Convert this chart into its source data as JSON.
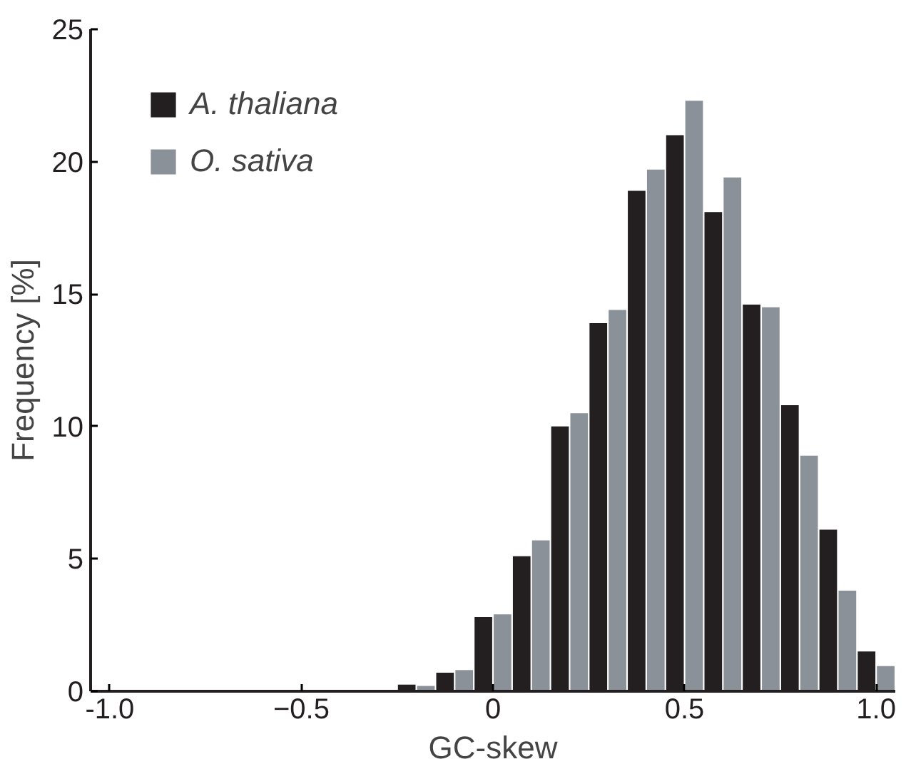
{
  "chart_data": {
    "type": "bar",
    "xlabel": "GC-skew",
    "ylabel": "Frequency [%]",
    "x": [
      -0.2,
      -0.1,
      0.0,
      0.1,
      0.2,
      0.3,
      0.4,
      0.5,
      0.6,
      0.7,
      0.8,
      0.9,
      1.0
    ],
    "series": [
      {
        "name": "A. thaliana",
        "color": "#231f20",
        "values": [
          0.25,
          0.7,
          2.8,
          5.1,
          10.0,
          13.9,
          18.9,
          21.0,
          18.1,
          14.6,
          10.8,
          6.1,
          1.5
        ]
      },
      {
        "name": "O. sativa",
        "color": "#8a9199",
        "values": [
          0.2,
          0.8,
          2.9,
          5.7,
          10.5,
          14.4,
          19.7,
          22.3,
          19.4,
          14.5,
          8.9,
          3.8,
          0.95
        ]
      }
    ],
    "xlim": [
      -1.05,
      1.05
    ],
    "xticks": [
      {
        "value": -1,
        "label": "-1.0"
      },
      -0.5,
      0,
      0.5,
      {
        "value": 1,
        "label": "1.0"
      }
    ],
    "ylim": [
      0,
      25
    ],
    "yticks": [
      0,
      5,
      10,
      15,
      20,
      25
    ],
    "grid": false,
    "legend": "top left"
  }
}
